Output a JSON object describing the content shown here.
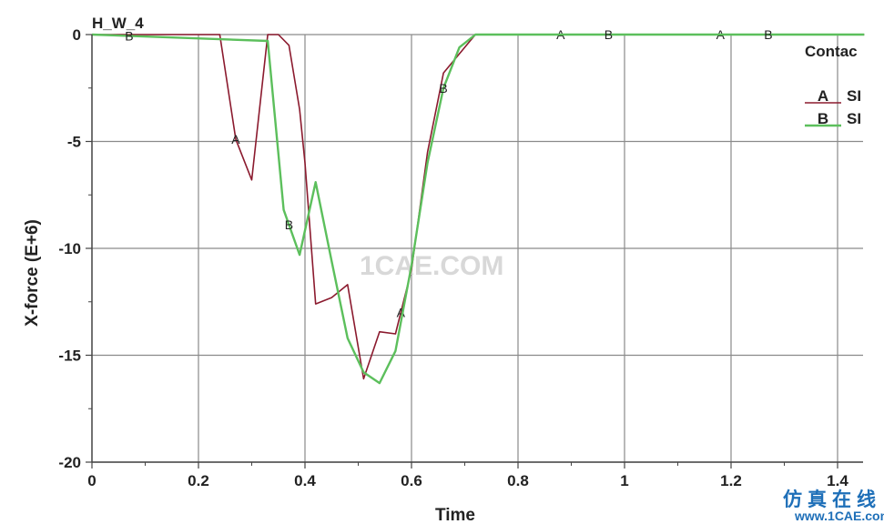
{
  "chart_data": {
    "type": "line",
    "title": "H_W_4",
    "xlabel": "Time",
    "ylabel": "X-force (E+6)",
    "xlim": [
      0,
      1.45
    ],
    "ylim": [
      -20,
      0
    ],
    "x_ticks": [
      0,
      0.2,
      0.4,
      0.6,
      0.8,
      1,
      1.2,
      1.4
    ],
    "x_tick_labels": [
      "0",
      "0.2",
      "0.4",
      "0.6",
      "0.8",
      "1",
      "1.2",
      "1.4"
    ],
    "y_ticks": [
      0,
      -5,
      -10,
      -15,
      -20
    ],
    "y_tick_labels": [
      "0",
      "-5",
      "-10",
      "-15",
      "-20"
    ],
    "grid": true,
    "legend_title": "Contac",
    "legend_position": "top-right",
    "series": [
      {
        "id": "A",
        "name": "SI",
        "color": "#8b1a2e",
        "x": [
          0,
          0.24,
          0.27,
          0.3,
          0.33,
          0.35,
          0.37,
          0.39,
          0.4,
          0.42,
          0.45,
          0.48,
          0.51,
          0.54,
          0.57,
          0.6,
          0.63,
          0.66,
          0.69,
          0.72,
          1.45
        ],
        "y": [
          0,
          0,
          -4.9,
          -6.8,
          0,
          0,
          -0.5,
          -3.5,
          -6,
          -12.6,
          -12.3,
          -11.7,
          -16.1,
          -13.9,
          -14,
          -11,
          -5.5,
          -1.8,
          -0.9,
          0,
          0
        ],
        "marker_x": [
          0.27,
          0.58,
          0.88,
          1.18
        ]
      },
      {
        "id": "B",
        "name": "SI",
        "color": "#5cbf5c",
        "x": [
          0,
          0.33,
          0.36,
          0.39,
          0.42,
          0.45,
          0.48,
          0.51,
          0.54,
          0.57,
          0.6,
          0.63,
          0.66,
          0.69,
          0.72,
          1.45
        ],
        "y": [
          0,
          -0.3,
          -8.2,
          -10.3,
          -6.9,
          -10.6,
          -14.2,
          -15.8,
          -16.3,
          -14.8,
          -10.8,
          -6,
          -2.5,
          -0.6,
          0,
          0
        ],
        "marker_x": [
          0.07,
          0.37,
          0.66,
          0.97,
          1.27
        ]
      }
    ]
  },
  "watermark": "1CAE.COM",
  "branding": {
    "line1": "仿真在线",
    "line2": "www.1CAE.com"
  }
}
